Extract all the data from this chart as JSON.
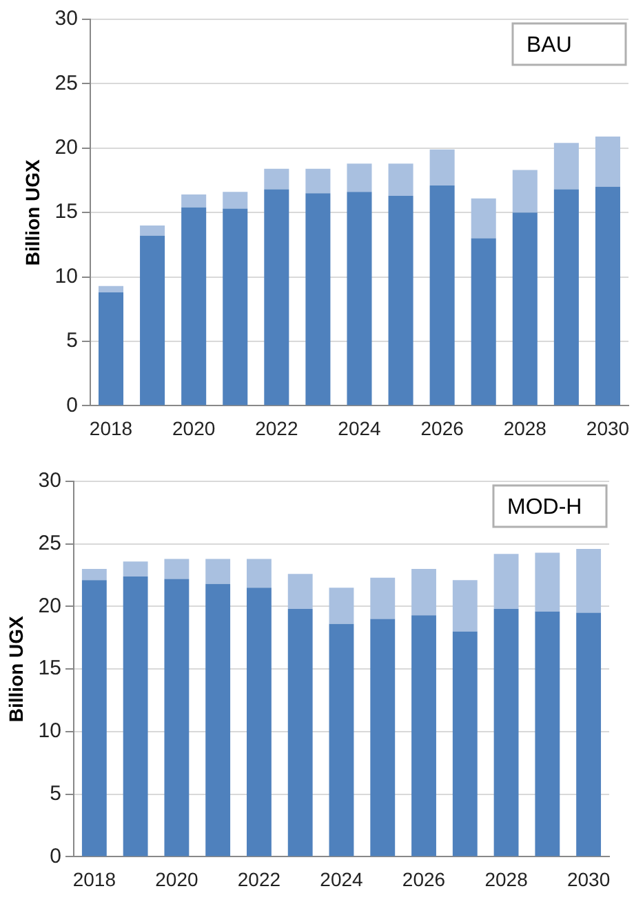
{
  "chart_data": [
    {
      "type": "bar",
      "title": "BAU",
      "ylabel": "Billion UGX",
      "stacked": true,
      "grid": "y",
      "legend": false,
      "categories": [
        "2018",
        null,
        "2020",
        null,
        "2022",
        null,
        "2024",
        null,
        "2026",
        null,
        "2028",
        null,
        "2030"
      ],
      "series": [
        {
          "color": "#4f81bd",
          "values": [
            8.8,
            13.2,
            15.4,
            15.3,
            16.8,
            16.5,
            16.6,
            16.3,
            17.1,
            13.0,
            15.0,
            16.8,
            17.0
          ]
        },
        {
          "color": "#a9c0e0",
          "values": [
            0.5,
            0.8,
            1.0,
            1.3,
            1.6,
            1.9,
            2.2,
            2.5,
            2.8,
            3.1,
            3.3,
            3.6,
            3.9
          ]
        }
      ],
      "ylim": [
        0,
        30
      ],
      "yticks": [
        0,
        5,
        10,
        15,
        20,
        25,
        30
      ]
    },
    {
      "type": "bar",
      "title": "MOD-H",
      "ylabel": "Billion UGX",
      "stacked": true,
      "grid": "y",
      "legend": false,
      "categories": [
        "2018",
        null,
        "2020",
        null,
        "2022",
        null,
        "2024",
        null,
        "2026",
        null,
        "2028",
        null,
        "2030"
      ],
      "series": [
        {
          "color": "#4f81bd",
          "values": [
            22.1,
            22.4,
            22.2,
            21.8,
            21.5,
            19.8,
            18.6,
            19.0,
            19.3,
            18.0,
            19.8,
            19.6,
            19.5
          ]
        },
        {
          "color": "#a9c0e0",
          "values": [
            0.9,
            1.2,
            1.6,
            2.0,
            2.3,
            2.8,
            2.9,
            3.3,
            3.7,
            4.1,
            4.4,
            4.7,
            5.1
          ]
        }
      ],
      "ylim": [
        0,
        30
      ],
      "yticks": [
        0,
        5,
        10,
        15,
        20,
        25,
        30
      ]
    }
  ]
}
